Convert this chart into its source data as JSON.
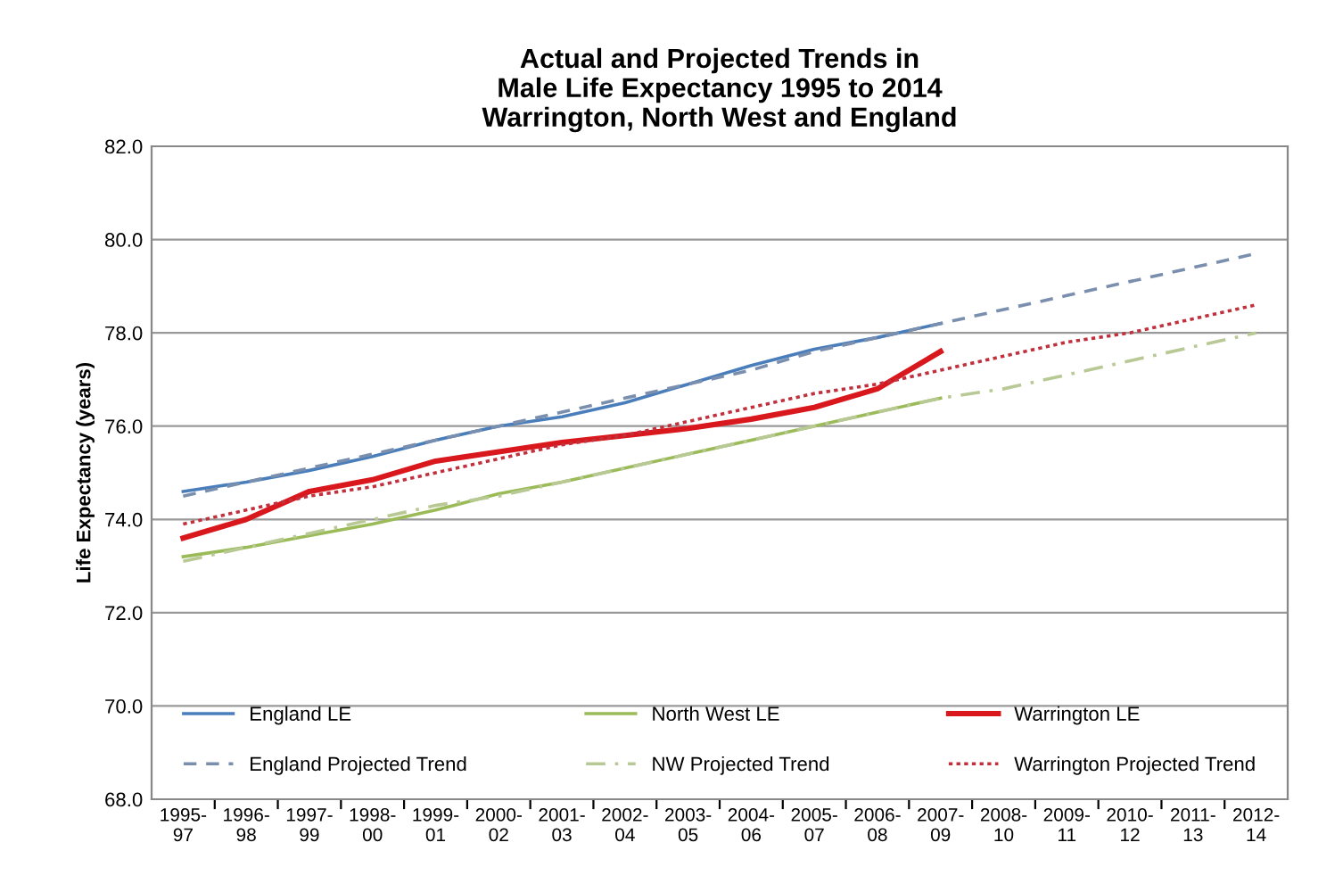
{
  "chart_data": {
    "type": "line",
    "title": "Actual and Projected Trends in\nMale Life Expectancy 1995 to 2014\nWarrington, North West and England",
    "ylabel": "Life Expectancy (years)",
    "categories": [
      "1995-97",
      "1996-98",
      "1997-99",
      "1998-00",
      "1999-01",
      "2000-02",
      "2001-03",
      "2002-04",
      "2003-05",
      "2004-06",
      "2005-07",
      "2006-08",
      "2007-09",
      "2008-10",
      "2009-11",
      "2010-12",
      "2011-13",
      "2012-14"
    ],
    "series": [
      {
        "name": "England LE",
        "color": "#4a7ebb",
        "line_style": "solid",
        "values": [
          74.6,
          74.8,
          75.05,
          75.35,
          75.7,
          76.0,
          76.2,
          76.5,
          76.9,
          77.3,
          77.65,
          77.9,
          78.2,
          null,
          null,
          null,
          null,
          null
        ]
      },
      {
        "name": "England Projected Trend",
        "color": "#7a8fae",
        "line_style": "dashed",
        "values": [
          74.5,
          74.8,
          75.1,
          75.4,
          75.7,
          76.0,
          76.3,
          76.6,
          76.9,
          77.2,
          77.6,
          77.9,
          78.2,
          78.5,
          78.8,
          79.1,
          79.4,
          79.7
        ]
      },
      {
        "name": "North West LE",
        "color": "#9bbb59",
        "line_style": "solid",
        "values": [
          73.2,
          73.4,
          73.65,
          73.9,
          74.2,
          74.55,
          74.8,
          75.1,
          75.4,
          75.7,
          76.0,
          76.3,
          76.6,
          null,
          null,
          null,
          null,
          null
        ]
      },
      {
        "name": "NW Projected Trend",
        "color": "#b9c995",
        "line_style": "dashdot",
        "values": [
          73.1,
          73.4,
          73.7,
          74.0,
          74.3,
          74.5,
          74.8,
          75.1,
          75.4,
          75.7,
          76.0,
          76.3,
          76.6,
          76.8,
          77.1,
          77.4,
          77.7,
          78.0
        ]
      },
      {
        "name": "Warrington LE",
        "color": "#d9181e",
        "line_style": "solid",
        "values": [
          73.6,
          74.0,
          74.6,
          74.85,
          75.25,
          75.45,
          75.65,
          75.8,
          75.95,
          76.15,
          76.4,
          76.8,
          77.6,
          null,
          null,
          null,
          null,
          null
        ]
      },
      {
        "name": "Warrington Projected Trend",
        "color": "#c0303d",
        "line_style": "dotted",
        "values": [
          73.9,
          74.2,
          74.5,
          74.7,
          75.0,
          75.3,
          75.6,
          75.8,
          76.1,
          76.4,
          76.7,
          76.9,
          77.2,
          77.5,
          77.8,
          78.0,
          78.3,
          78.6
        ]
      }
    ],
    "ylim": [
      68,
      82
    ],
    "yticks": [
      {
        "value": 68,
        "label": "68.0"
      },
      {
        "value": 70,
        "label": "70.0"
      },
      {
        "value": 72,
        "label": "72.0"
      },
      {
        "value": 74,
        "label": "74.0"
      },
      {
        "value": 76,
        "label": "76.0"
      },
      {
        "value": 78,
        "label": "78.0"
      },
      {
        "value": 80,
        "label": "80.0"
      },
      {
        "value": 82,
        "label": "82.0"
      }
    ],
    "grid": "y",
    "legend": "bottom",
    "marker": "none"
  }
}
